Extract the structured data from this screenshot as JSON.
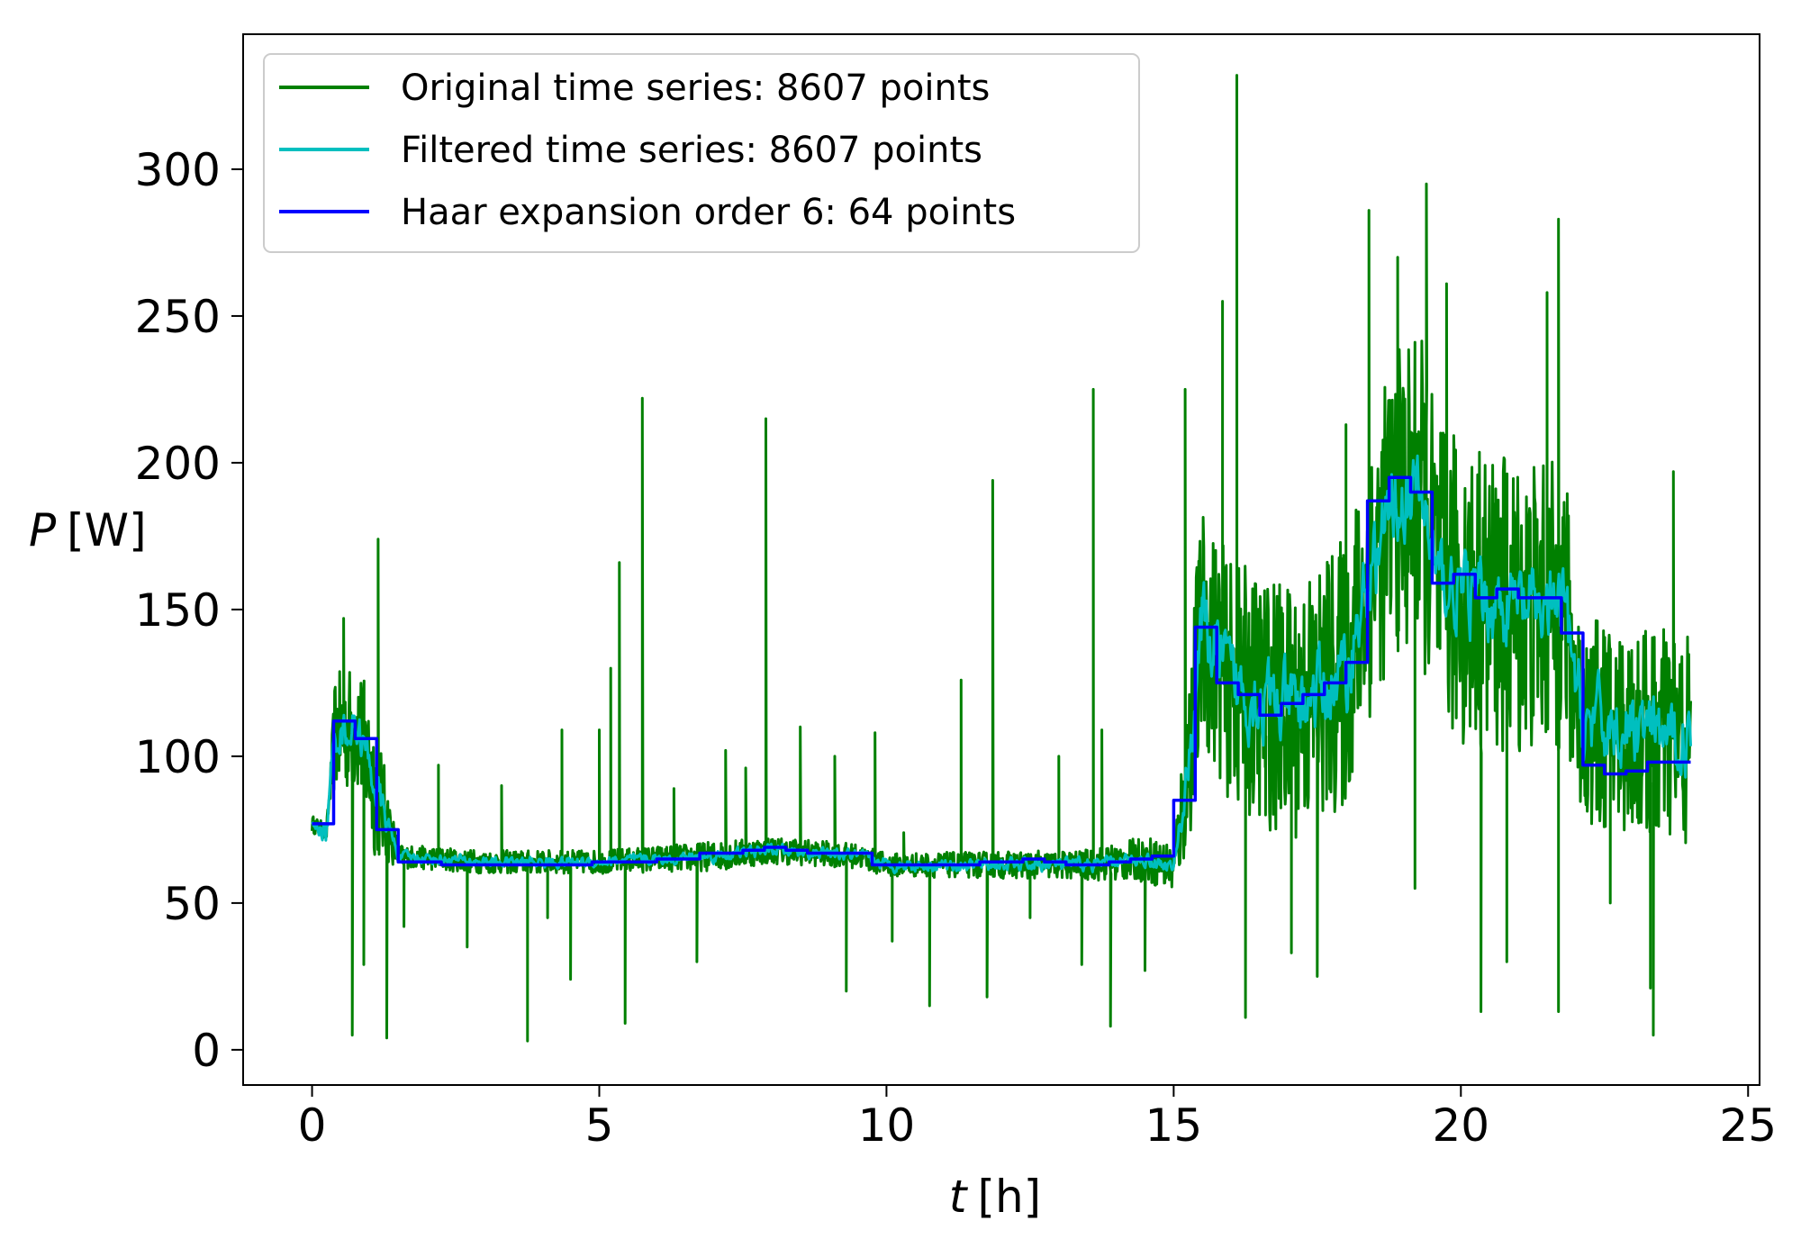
{
  "chart_data": {
    "type": "line",
    "xlabel": "t",
    "xlabel_unit": "[h]",
    "ylabel": "P",
    "ylabel_unit": "[W]",
    "xlim": [
      -1.2,
      25.2
    ],
    "ylim": [
      -12,
      346
    ],
    "xticks": [
      0,
      5,
      10,
      15,
      20,
      25
    ],
    "yticks": [
      0,
      50,
      100,
      150,
      200,
      250,
      300
    ],
    "grid": false,
    "legend_position": "top-left",
    "series": [
      {
        "name": "Original time series: 8607 points",
        "color": "#008000",
        "style": "noisy",
        "base": [
          [
            0,
            77
          ],
          [
            0.25,
            74
          ],
          [
            0.4,
            108
          ],
          [
            0.8,
            110
          ],
          [
            1.1,
            90
          ],
          [
            1.5,
            66
          ],
          [
            3,
            64
          ],
          [
            5,
            64
          ],
          [
            7,
            66
          ],
          [
            8,
            68
          ],
          [
            9.5,
            66
          ],
          [
            10,
            63
          ],
          [
            12,
            63
          ],
          [
            13.5,
            63
          ],
          [
            14.5,
            65
          ],
          [
            15,
            62
          ],
          [
            15.2,
            88
          ],
          [
            15.5,
            145
          ],
          [
            16,
            125
          ],
          [
            17,
            115
          ],
          [
            18,
            128
          ],
          [
            18.4,
            160
          ],
          [
            18.8,
            185
          ],
          [
            19.3,
            190
          ],
          [
            19.6,
            160
          ],
          [
            20.5,
            152
          ],
          [
            21.8,
            150
          ],
          [
            22.1,
            112
          ],
          [
            24,
            105
          ]
        ],
        "amplitude": [
          [
            0,
            3
          ],
          [
            0.3,
            3
          ],
          [
            0.4,
            20
          ],
          [
            1.1,
            25
          ],
          [
            1.5,
            4
          ],
          [
            5,
            4
          ],
          [
            7,
            5
          ],
          [
            10,
            4
          ],
          [
            13.4,
            5
          ],
          [
            15,
            9
          ],
          [
            15.4,
            40
          ],
          [
            18.4,
            48
          ],
          [
            19.2,
            55
          ],
          [
            21.8,
            50
          ],
          [
            22.1,
            35
          ],
          [
            24,
            38
          ]
        ],
        "spikes": [
          [
            0.55,
            147
          ],
          [
            0.7,
            5
          ],
          [
            0.9,
            29
          ],
          [
            1.15,
            174
          ],
          [
            1.3,
            4
          ],
          [
            1.6,
            42
          ],
          [
            2.2,
            97
          ],
          [
            2.7,
            35
          ],
          [
            3.3,
            90
          ],
          [
            3.75,
            3
          ],
          [
            4.1,
            45
          ],
          [
            4.35,
            109
          ],
          [
            4.5,
            24
          ],
          [
            5.0,
            109
          ],
          [
            5.2,
            130
          ],
          [
            5.35,
            166
          ],
          [
            5.45,
            9
          ],
          [
            5.75,
            222
          ],
          [
            6.3,
            89
          ],
          [
            6.7,
            30
          ],
          [
            7.2,
            102
          ],
          [
            7.55,
            96
          ],
          [
            7.9,
            215
          ],
          [
            8.5,
            110
          ],
          [
            9.1,
            100
          ],
          [
            9.3,
            20
          ],
          [
            9.8,
            108
          ],
          [
            10.1,
            37
          ],
          [
            10.3,
            74
          ],
          [
            10.75,
            15
          ],
          [
            11.3,
            126
          ],
          [
            11.75,
            18
          ],
          [
            11.85,
            194
          ],
          [
            12.5,
            45
          ],
          [
            13,
            100
          ],
          [
            13.4,
            29
          ],
          [
            13.6,
            225
          ],
          [
            13.75,
            109
          ],
          [
            13.9,
            8
          ],
          [
            14.5,
            27
          ],
          [
            15.2,
            225
          ],
          [
            15.35,
            113
          ],
          [
            15.85,
            255
          ],
          [
            16.1,
            332
          ],
          [
            16.25,
            11
          ],
          [
            16.6,
            80
          ],
          [
            17.05,
            33
          ],
          [
            17.5,
            25
          ],
          [
            18.0,
            213
          ],
          [
            18.4,
            286
          ],
          [
            18.9,
            270
          ],
          [
            19.2,
            55
          ],
          [
            19.4,
            295
          ],
          [
            19.75,
            261
          ],
          [
            20.35,
            13
          ],
          [
            20.8,
            30
          ],
          [
            21.5,
            258
          ],
          [
            21.7,
            283
          ],
          [
            21.7,
            13
          ],
          [
            22.6,
            50
          ],
          [
            23.3,
            21
          ],
          [
            23.35,
            5
          ],
          [
            23.7,
            197
          ]
        ]
      },
      {
        "name": "Filtered time series: 8607 points",
        "color": "#00BFBF",
        "style": "smooth",
        "base": [
          [
            0,
            77
          ],
          [
            0.25,
            74
          ],
          [
            0.4,
            108
          ],
          [
            0.8,
            110
          ],
          [
            1.1,
            90
          ],
          [
            1.5,
            66
          ],
          [
            3,
            64
          ],
          [
            5,
            64
          ],
          [
            7,
            66
          ],
          [
            8,
            68
          ],
          [
            9.5,
            66
          ],
          [
            10,
            63
          ],
          [
            12,
            63
          ],
          [
            13.5,
            63
          ],
          [
            14.5,
            65
          ],
          [
            15,
            62
          ],
          [
            15.2,
            88
          ],
          [
            15.5,
            145
          ],
          [
            16,
            125
          ],
          [
            17,
            115
          ],
          [
            18,
            128
          ],
          [
            18.4,
            160
          ],
          [
            18.8,
            185
          ],
          [
            19.3,
            190
          ],
          [
            19.6,
            160
          ],
          [
            20.5,
            152
          ],
          [
            21.8,
            150
          ],
          [
            22.1,
            112
          ],
          [
            24,
            105
          ]
        ],
        "amplitude": [
          [
            0,
            1
          ],
          [
            0.4,
            6
          ],
          [
            1.1,
            6
          ],
          [
            1.5,
            1.5
          ],
          [
            15,
            2
          ],
          [
            15.4,
            12
          ],
          [
            22,
            12
          ],
          [
            24,
            9
          ]
        ]
      },
      {
        "name": "Haar expansion order 6: 64 points",
        "color": "#0000FF",
        "style": "step",
        "dt": 0.375,
        "values": [
          77,
          112,
          106,
          75,
          64,
          64,
          63,
          63,
          63,
          63,
          63,
          63,
          63,
          64,
          64,
          64,
          65,
          65,
          67,
          67,
          68,
          69,
          68,
          67,
          67,
          67,
          63,
          63,
          63,
          63,
          63,
          64,
          64,
          65,
          64,
          63,
          63,
          64,
          65,
          66,
          85,
          144,
          125,
          121,
          114,
          118,
          121,
          125,
          132,
          187,
          195,
          190,
          159,
          162,
          154,
          157,
          154,
          154,
          142,
          97,
          94,
          95,
          98,
          98
        ]
      }
    ]
  }
}
